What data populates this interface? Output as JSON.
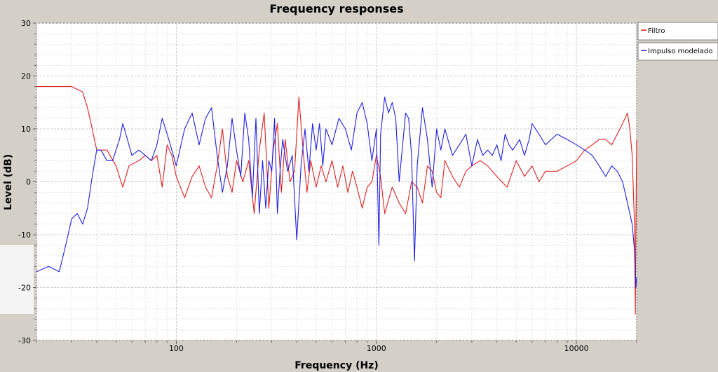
{
  "chart_data": {
    "type": "line",
    "title": "Frequency responses",
    "xlabel": "Frequency (Hz)",
    "ylabel": "Level (dB)",
    "x_scale": "log",
    "xlim": [
      20,
      20000
    ],
    "ylim": [
      -30,
      30
    ],
    "x_ticks": [
      {
        "value": 100,
        "label": "100"
      },
      {
        "value": 1000,
        "label": "1000"
      },
      {
        "value": 10000,
        "label": "10000"
      }
    ],
    "y_ticks": [
      {
        "value": 30,
        "label": "30"
      },
      {
        "value": 20,
        "label": "20"
      },
      {
        "value": 10,
        "label": "10"
      },
      {
        "value": 0,
        "label": "0"
      },
      {
        "value": -10,
        "label": "-10"
      },
      {
        "value": -20,
        "label": "-20"
      },
      {
        "value": -30,
        "label": "-30"
      }
    ],
    "grid": true,
    "legend_position": "right",
    "series": [
      {
        "name": "Filtro",
        "color": "#e02020",
        "points": [
          [
            20,
            18
          ],
          [
            30,
            18
          ],
          [
            34,
            17
          ],
          [
            36,
            14
          ],
          [
            38,
            10
          ],
          [
            40,
            6
          ],
          [
            45,
            6
          ],
          [
            50,
            3
          ],
          [
            54,
            -1
          ],
          [
            58,
            3
          ],
          [
            65,
            4
          ],
          [
            70,
            5
          ],
          [
            75,
            4
          ],
          [
            80,
            5
          ],
          [
            85,
            -1
          ],
          [
            90,
            7
          ],
          [
            95,
            5
          ],
          [
            100,
            1
          ],
          [
            110,
            -3
          ],
          [
            120,
            1
          ],
          [
            130,
            3
          ],
          [
            140,
            -1
          ],
          [
            150,
            -3
          ],
          [
            160,
            3
          ],
          [
            170,
            10
          ],
          [
            180,
            1
          ],
          [
            190,
            -2
          ],
          [
            200,
            4
          ],
          [
            215,
            0
          ],
          [
            230,
            4
          ],
          [
            245,
            -6
          ],
          [
            260,
            6
          ],
          [
            275,
            13
          ],
          [
            290,
            -5
          ],
          [
            305,
            6
          ],
          [
            320,
            11
          ],
          [
            335,
            -2
          ],
          [
            350,
            8
          ],
          [
            370,
            0
          ],
          [
            390,
            2
          ],
          [
            410,
            16
          ],
          [
            430,
            6
          ],
          [
            450,
            -2
          ],
          [
            470,
            4
          ],
          [
            500,
            -1
          ],
          [
            530,
            3
          ],
          [
            560,
            0
          ],
          [
            600,
            4
          ],
          [
            640,
            -1
          ],
          [
            680,
            3
          ],
          [
            720,
            -2
          ],
          [
            760,
            2
          ],
          [
            800,
            -1
          ],
          [
            850,
            -5
          ],
          [
            900,
            -1
          ],
          [
            950,
            0
          ],
          [
            1000,
            5
          ],
          [
            1050,
            1
          ],
          [
            1100,
            -6
          ],
          [
            1200,
            -1
          ],
          [
            1300,
            -4
          ],
          [
            1400,
            -6
          ],
          [
            1500,
            0
          ],
          [
            1600,
            -1
          ],
          [
            1700,
            -4
          ],
          [
            1800,
            3
          ],
          [
            1900,
            2
          ],
          [
            2000,
            -2
          ],
          [
            2100,
            -3
          ],
          [
            2200,
            4
          ],
          [
            2400,
            1
          ],
          [
            2600,
            -1
          ],
          [
            2800,
            2
          ],
          [
            3000,
            3
          ],
          [
            3300,
            4
          ],
          [
            3600,
            3
          ],
          [
            4000,
            1
          ],
          [
            4500,
            -1
          ],
          [
            5000,
            4
          ],
          [
            5500,
            1
          ],
          [
            6000,
            3
          ],
          [
            6500,
            0
          ],
          [
            7000,
            2
          ],
          [
            8000,
            2
          ],
          [
            9000,
            3
          ],
          [
            10000,
            4
          ],
          [
            11000,
            6
          ],
          [
            12000,
            7
          ],
          [
            13000,
            8
          ],
          [
            14000,
            8
          ],
          [
            15000,
            7
          ],
          [
            16000,
            9
          ],
          [
            17000,
            11
          ],
          [
            18000,
            13
          ],
          [
            18500,
            10
          ],
          [
            19000,
            5
          ],
          [
            19500,
            -8
          ],
          [
            19700,
            -25
          ],
          [
            19800,
            -10
          ],
          [
            20000,
            8
          ]
        ]
      },
      {
        "name": "Impulso modelado",
        "color": "#2020e0",
        "points": [
          [
            20,
            -17
          ],
          [
            23,
            -16
          ],
          [
            26,
            -17
          ],
          [
            28,
            -12
          ],
          [
            30,
            -7
          ],
          [
            32,
            -6
          ],
          [
            34,
            -8
          ],
          [
            36,
            -5
          ],
          [
            38,
            1
          ],
          [
            40,
            6
          ],
          [
            42,
            6
          ],
          [
            45,
            4
          ],
          [
            48,
            4
          ],
          [
            50,
            6
          ],
          [
            52,
            8
          ],
          [
            54,
            11
          ],
          [
            56,
            9
          ],
          [
            60,
            5
          ],
          [
            65,
            6
          ],
          [
            70,
            5
          ],
          [
            75,
            4
          ],
          [
            80,
            7
          ],
          [
            85,
            12
          ],
          [
            90,
            9
          ],
          [
            95,
            6
          ],
          [
            100,
            3
          ],
          [
            110,
            10
          ],
          [
            120,
            13
          ],
          [
            130,
            7
          ],
          [
            140,
            12
          ],
          [
            150,
            14
          ],
          [
            160,
            5
          ],
          [
            170,
            -2
          ],
          [
            180,
            3
          ],
          [
            190,
            12
          ],
          [
            200,
            6
          ],
          [
            210,
            1
          ],
          [
            220,
            13
          ],
          [
            230,
            8
          ],
          [
            240,
            -3
          ],
          [
            250,
            12
          ],
          [
            260,
            -6
          ],
          [
            270,
            4
          ],
          [
            280,
            -5
          ],
          [
            290,
            4
          ],
          [
            300,
            2
          ],
          [
            310,
            12
          ],
          [
            320,
            -6
          ],
          [
            330,
            2
          ],
          [
            340,
            8
          ],
          [
            360,
            2
          ],
          [
            380,
            5
          ],
          [
            400,
            -11
          ],
          [
            420,
            3
          ],
          [
            440,
            10
          ],
          [
            460,
            2
          ],
          [
            480,
            11
          ],
          [
            500,
            6
          ],
          [
            520,
            11
          ],
          [
            540,
            3
          ],
          [
            560,
            10
          ],
          [
            600,
            7
          ],
          [
            650,
            12
          ],
          [
            700,
            10
          ],
          [
            750,
            6
          ],
          [
            800,
            13
          ],
          [
            850,
            15
          ],
          [
            900,
            11
          ],
          [
            950,
            4
          ],
          [
            1000,
            10
          ],
          [
            1030,
            -12
          ],
          [
            1050,
            9
          ],
          [
            1100,
            16
          ],
          [
            1150,
            13
          ],
          [
            1200,
            15
          ],
          [
            1250,
            12
          ],
          [
            1300,
            0
          ],
          [
            1400,
            13
          ],
          [
            1450,
            12
          ],
          [
            1500,
            5
          ],
          [
            1550,
            -15
          ],
          [
            1600,
            3
          ],
          [
            1700,
            14
          ],
          [
            1800,
            8
          ],
          [
            1900,
            -1
          ],
          [
            2000,
            10
          ],
          [
            2100,
            6
          ],
          [
            2200,
            10
          ],
          [
            2400,
            5
          ],
          [
            2600,
            7
          ],
          [
            2800,
            9
          ],
          [
            3000,
            3
          ],
          [
            3200,
            8
          ],
          [
            3400,
            5
          ],
          [
            3600,
            6
          ],
          [
            3800,
            5
          ],
          [
            4000,
            7
          ],
          [
            4200,
            4
          ],
          [
            4400,
            9
          ],
          [
            4600,
            7
          ],
          [
            4800,
            6
          ],
          [
            5000,
            7
          ],
          [
            5200,
            8
          ],
          [
            5500,
            5
          ],
          [
            5800,
            8
          ],
          [
            6000,
            11
          ],
          [
            6500,
            9
          ],
          [
            7000,
            7
          ],
          [
            8000,
            9
          ],
          [
            9000,
            8
          ],
          [
            10000,
            7
          ],
          [
            11000,
            6
          ],
          [
            12000,
            5
          ],
          [
            13000,
            3
          ],
          [
            14000,
            1
          ],
          [
            15000,
            3
          ],
          [
            16000,
            2
          ],
          [
            17000,
            0
          ],
          [
            18000,
            -4
          ],
          [
            19000,
            -8
          ],
          [
            19500,
            -13
          ],
          [
            19800,
            -20
          ],
          [
            20000,
            -18
          ]
        ]
      }
    ]
  }
}
